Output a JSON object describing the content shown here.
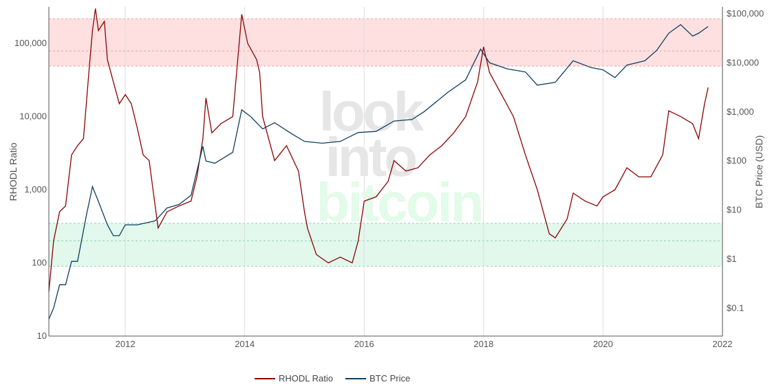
{
  "chart_data": {
    "type": "line",
    "title": "",
    "watermark": [
      "look",
      "into",
      "bitcoin"
    ],
    "xlabel": "",
    "ylabel_left": "RHODL Ratio",
    "ylabel_right": "BTC Price (USD)",
    "xlim": [
      2010.72,
      2022.0
    ],
    "ylim_left": [
      10,
      316000
    ],
    "ylim_right": [
      0.027,
      138000
    ],
    "y_scale": "log",
    "x_ticks": [
      2012,
      2014,
      2016,
      2018,
      2020,
      2022
    ],
    "y_left_ticks": [
      {
        "v": 10,
        "label": "10"
      },
      {
        "v": 100,
        "label": "100"
      },
      {
        "v": 1000,
        "label": "1,000"
      },
      {
        "v": 10000,
        "label": "10,000"
      },
      {
        "v": 100000,
        "label": "100,000"
      }
    ],
    "y_right_ticks": [
      {
        "v": 0.1,
        "label": "$0.1"
      },
      {
        "v": 1,
        "label": "$1"
      },
      {
        "v": 10,
        "label": "$10"
      },
      {
        "v": 100,
        "label": "$100"
      },
      {
        "v": 1000,
        "label": "$1,000"
      },
      {
        "v": 10000,
        "label": "$10,000"
      },
      {
        "v": 100000,
        "label": "$100,000"
      }
    ],
    "grid": true,
    "bands": [
      {
        "name": "overheated-zone",
        "range": [
          49000,
          217000
        ],
        "mid": 79000,
        "color": "#ffd6d6"
      },
      {
        "name": "undervalued-zone",
        "range": [
          90,
          348
        ],
        "mid": 200,
        "color": "#d8f5e6"
      }
    ],
    "legend_position": "bottom-center",
    "series": [
      {
        "name": "RHODL Ratio",
        "axis": "left",
        "color": "#8b0000",
        "points": [
          [
            2010.72,
            40
          ],
          [
            2010.8,
            200
          ],
          [
            2010.9,
            500
          ],
          [
            2011.0,
            600
          ],
          [
            2011.1,
            3000
          ],
          [
            2011.2,
            4000
          ],
          [
            2011.3,
            5000
          ],
          [
            2011.4,
            50000
          ],
          [
            2011.45,
            150000
          ],
          [
            2011.5,
            300000
          ],
          [
            2011.55,
            150000
          ],
          [
            2011.65,
            200000
          ],
          [
            2011.7,
            60000
          ],
          [
            2011.8,
            30000
          ],
          [
            2011.9,
            15000
          ],
          [
            2012.0,
            20000
          ],
          [
            2012.1,
            15000
          ],
          [
            2012.2,
            7000
          ],
          [
            2012.3,
            3000
          ],
          [
            2012.4,
            2500
          ],
          [
            2012.5,
            600
          ],
          [
            2012.55,
            300
          ],
          [
            2012.7,
            500
          ],
          [
            2012.9,
            600
          ],
          [
            2013.1,
            700
          ],
          [
            2013.2,
            1500
          ],
          [
            2013.3,
            5000
          ],
          [
            2013.35,
            18000
          ],
          [
            2013.45,
            6000
          ],
          [
            2013.6,
            8000
          ],
          [
            2013.8,
            10000
          ],
          [
            2013.95,
            250000
          ],
          [
            2014.05,
            100000
          ],
          [
            2014.2,
            60000
          ],
          [
            2014.25,
            40000
          ],
          [
            2014.3,
            10000
          ],
          [
            2014.4,
            5000
          ],
          [
            2014.5,
            2500
          ],
          [
            2014.7,
            4000
          ],
          [
            2014.9,
            1800
          ],
          [
            2015.0,
            500
          ],
          [
            2015.05,
            300
          ],
          [
            2015.2,
            130
          ],
          [
            2015.4,
            100
          ],
          [
            2015.6,
            120
          ],
          [
            2015.8,
            100
          ],
          [
            2015.9,
            200
          ],
          [
            2016.0,
            700
          ],
          [
            2016.2,
            800
          ],
          [
            2016.4,
            1300
          ],
          [
            2016.5,
            2500
          ],
          [
            2016.7,
            1800
          ],
          [
            2016.9,
            2000
          ],
          [
            2017.1,
            3000
          ],
          [
            2017.3,
            4000
          ],
          [
            2017.5,
            6000
          ],
          [
            2017.7,
            10000
          ],
          [
            2017.9,
            30000
          ],
          [
            2018.0,
            90000
          ],
          [
            2018.1,
            40000
          ],
          [
            2018.3,
            20000
          ],
          [
            2018.5,
            10000
          ],
          [
            2018.7,
            3000
          ],
          [
            2018.9,
            1000
          ],
          [
            2019.1,
            250
          ],
          [
            2019.2,
            220
          ],
          [
            2019.4,
            400
          ],
          [
            2019.5,
            900
          ],
          [
            2019.7,
            700
          ],
          [
            2019.9,
            600
          ],
          [
            2020.0,
            800
          ],
          [
            2020.2,
            1000
          ],
          [
            2020.4,
            2000
          ],
          [
            2020.6,
            1500
          ],
          [
            2020.8,
            1500
          ],
          [
            2021.0,
            3000
          ],
          [
            2021.1,
            12000
          ],
          [
            2021.3,
            10000
          ],
          [
            2021.5,
            8000
          ],
          [
            2021.6,
            5000
          ],
          [
            2021.7,
            15000
          ],
          [
            2021.76,
            25000
          ]
        ]
      },
      {
        "name": "BTC Price",
        "axis": "right",
        "color": "#0b3d5c",
        "points": [
          [
            2010.72,
            0.06
          ],
          [
            2010.8,
            0.1
          ],
          [
            2010.9,
            0.3
          ],
          [
            2011.0,
            0.3
          ],
          [
            2011.1,
            0.9
          ],
          [
            2011.2,
            0.9
          ],
          [
            2011.35,
            8
          ],
          [
            2011.45,
            30
          ],
          [
            2011.55,
            15
          ],
          [
            2011.7,
            5
          ],
          [
            2011.8,
            3
          ],
          [
            2011.9,
            3
          ],
          [
            2012.0,
            5
          ],
          [
            2012.2,
            5
          ],
          [
            2012.5,
            6
          ],
          [
            2012.7,
            11
          ],
          [
            2012.9,
            13
          ],
          [
            2013.1,
            20
          ],
          [
            2013.3,
            200
          ],
          [
            2013.35,
            100
          ],
          [
            2013.5,
            90
          ],
          [
            2013.8,
            150
          ],
          [
            2013.95,
            1100
          ],
          [
            2014.1,
            800
          ],
          [
            2014.3,
            450
          ],
          [
            2014.5,
            600
          ],
          [
            2014.8,
            350
          ],
          [
            2015.0,
            250
          ],
          [
            2015.3,
            230
          ],
          [
            2015.6,
            250
          ],
          [
            2015.9,
            380
          ],
          [
            2016.2,
            400
          ],
          [
            2016.5,
            650
          ],
          [
            2016.8,
            700
          ],
          [
            2017.0,
            1000
          ],
          [
            2017.4,
            2500
          ],
          [
            2017.7,
            4500
          ],
          [
            2017.95,
            19000
          ],
          [
            2018.1,
            10000
          ],
          [
            2018.4,
            7500
          ],
          [
            2018.7,
            6500
          ],
          [
            2018.9,
            3500
          ],
          [
            2019.2,
            4000
          ],
          [
            2019.5,
            11000
          ],
          [
            2019.8,
            8000
          ],
          [
            2020.0,
            7200
          ],
          [
            2020.2,
            5000
          ],
          [
            2020.4,
            9000
          ],
          [
            2020.7,
            11000
          ],
          [
            2020.9,
            18000
          ],
          [
            2021.1,
            40000
          ],
          [
            2021.3,
            60000
          ],
          [
            2021.5,
            35000
          ],
          [
            2021.6,
            40000
          ],
          [
            2021.76,
            55000
          ]
        ]
      }
    ]
  }
}
